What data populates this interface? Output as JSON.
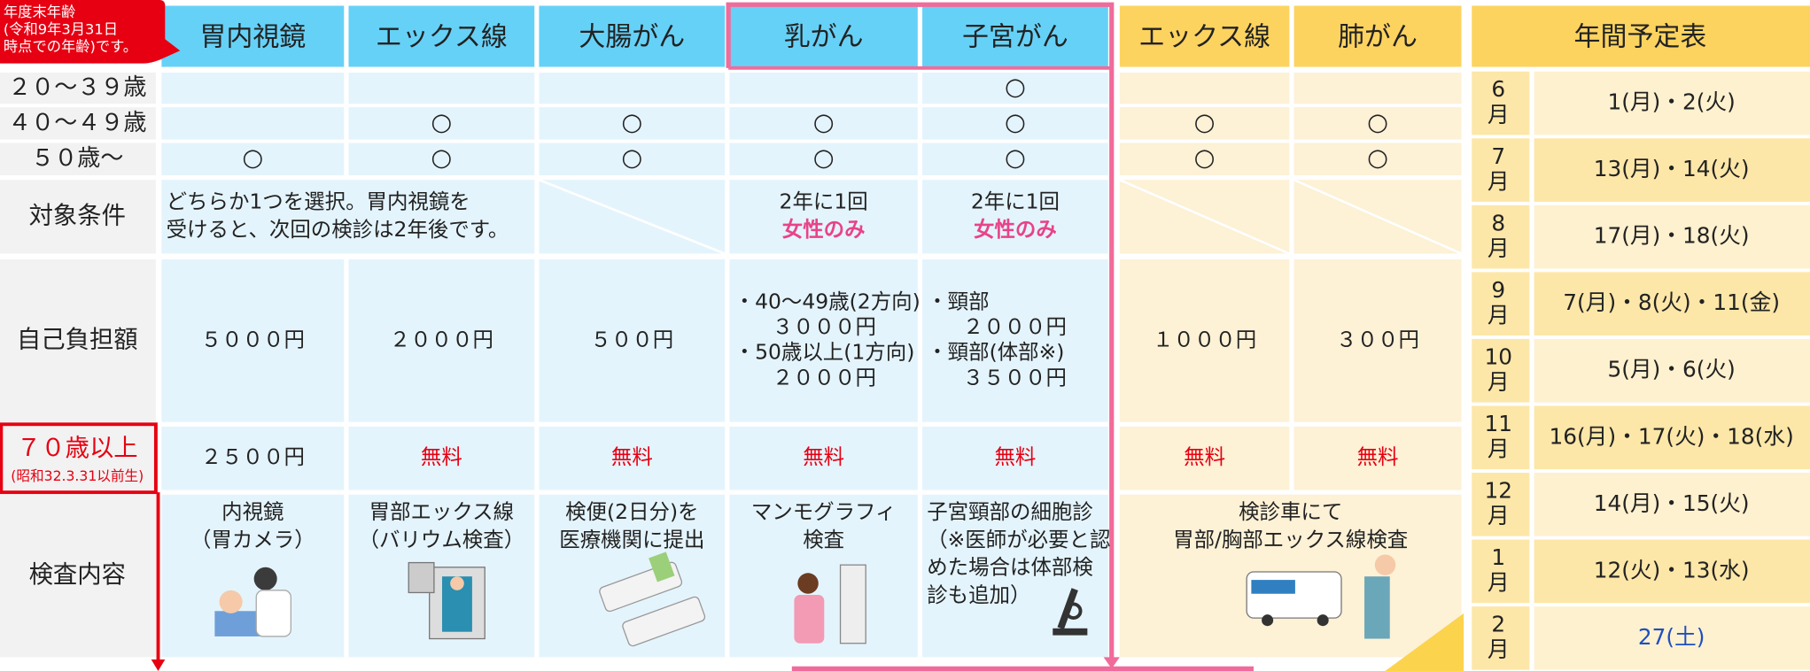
{
  "age_note": [
    "年度末年齢",
    "(令和9年3月31日",
    "時点での年齢)です。"
  ],
  "table": {
    "columns": [
      "胃内視鏡",
      "エックス線",
      "大腸がん",
      "乳がん",
      "子宮がん",
      "エックス線",
      "肺がん"
    ],
    "rows": [
      {
        "label": "２０～３９歳",
        "cells": [
          null,
          null,
          null,
          null,
          "○",
          null,
          null
        ]
      },
      {
        "label": "４０～４９歳",
        "cells": [
          null,
          "○",
          "○",
          "○",
          "○",
          "○",
          "○"
        ]
      },
      {
        "label": "５０歳～",
        "cells": [
          "○",
          "○",
          "○",
          "○",
          "○",
          "○",
          "○"
        ]
      },
      {
        "label": "対象条件",
        "slashed": true,
        "cells": [
          {
            "lines": [
              "どちらか1つを選択。胃内視鏡を",
              "受けると、次回の検診は2年後です。"
            ],
            "colspan": 2,
            "align": "left"
          },
          null,
          [
            "2年に1回",
            {
              "text": "女性のみ",
              "color": "#e8438a"
            }
          ],
          [
            "2年に1回",
            {
              "text": "女性のみ",
              "color": "#e8438a"
            }
          ],
          null,
          null
        ]
      },
      {
        "label": "自己負担額",
        "cells": [
          "５０００円",
          "２０００円",
          "５００円",
          [
            "・40～49歳(2方向)",
            "３０００円",
            "・50歳以上(1方向)",
            "２０００円"
          ],
          [
            "・頸部",
            "２０００円",
            "・頸部(体部※)",
            "３５００円"
          ],
          "１０００円",
          "３００円"
        ]
      },
      {
        "label": [
          {
            "text": "７０歳以上",
            "color": "#e60012"
          },
          {
            "text": "(昭和32.3.31以前生)",
            "color": "#e60012"
          }
        ],
        "cells": [
          "２５００円",
          {
            "text": "無料",
            "color": "#e60012"
          },
          {
            "text": "無料",
            "color": "#e60012"
          },
          {
            "text": "無料",
            "color": "#e60012"
          },
          {
            "text": "無料",
            "color": "#e60012"
          },
          {
            "text": "無料",
            "color": "#e60012"
          },
          {
            "text": "無料",
            "color": "#e60012"
          }
        ]
      },
      {
        "label": "検査内容",
        "cells": [
          [
            "内視鏡",
            "（胃カメラ）"
          ],
          [
            "胃部エックス線",
            "（バリウム検査）"
          ],
          [
            "検便(2日分)を",
            "医療機関に提出"
          ],
          [
            "マンモグラフィ",
            "検査"
          ],
          {
            "lines": [
              "子宮頸部の細胞診",
              "（※医師が必要と認",
              "めた場合は体部検",
              "診も追加）"
            ],
            "align": "left"
          },
          {
            "lines": [
              "検診車にて",
              "胃部/胸部エックス線検査"
            ],
            "colspan": 2
          }
        ]
      }
    ]
  },
  "schedule": {
    "title": "年間予定表",
    "months": [
      {
        "month": [
          "6",
          "月"
        ],
        "dates": "1(月)・2(火)"
      },
      {
        "month": [
          "7",
          "月"
        ],
        "dates": "13(月)・14(火)"
      },
      {
        "month": [
          "8",
          "月"
        ],
        "dates": "17(月)・18(火)"
      },
      {
        "month": [
          "9",
          "月"
        ],
        "dates": "7(月)・8(火)・11(金)"
      },
      {
        "month": [
          "10",
          "月"
        ],
        "dates": "5(月)・6(火)"
      },
      {
        "month": [
          "11",
          "月"
        ],
        "dates": "16(月)・17(火)・18(水)"
      },
      {
        "month": [
          "12",
          "月"
        ],
        "dates": "14(月)・15(火)"
      },
      {
        "month": [
          "1",
          "月"
        ],
        "dates": "12(火)・13(水)"
      },
      {
        "month": [
          "2",
          "月"
        ],
        "dates": {
          "text": "27(土)",
          "color": "#1f4fbf"
        }
      }
    ]
  }
}
